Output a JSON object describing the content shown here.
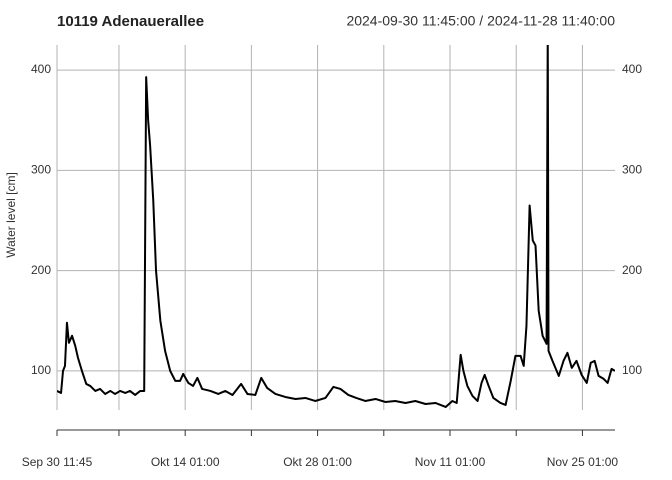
{
  "chart_data": {
    "type": "line",
    "title": "10119 Adenauerallee",
    "subtitle": "2024-09-30 11:45:00 / 2024-11-28 11:40:00",
    "y_label": "Water level [cm]",
    "color": "#000000",
    "grid": true,
    "xlim": [
      "2024-09-30 11:45",
      "2024-11-28 11:40"
    ],
    "xticks": [
      {
        "value": "2024-09-30 11:45",
        "label": "Sep 30 11:45"
      },
      {
        "value": "2024-10-14 01:00",
        "label": "Okt 14 01:00"
      },
      {
        "value": "2024-10-28 01:00",
        "label": "Okt 28 01:00"
      },
      {
        "value": "2024-11-11 01:00",
        "label": "Nov 11 01:00"
      },
      {
        "value": "2024-11-25 01:00",
        "label": "Nov 25 01:00"
      }
    ],
    "xminor_ticks": [
      "2024-10-07 01:00",
      "2024-10-21 01:00",
      "2024-11-04 01:00",
      "2024-11-18 01:00"
    ],
    "ylim": [
      61,
      425
    ],
    "yticks": [
      100,
      200,
      300,
      400
    ],
    "x": [
      "2024-09-30 11:45",
      "2024-09-30 22:00",
      "2024-10-01 03:00",
      "2024-10-01 08:00",
      "2024-10-01 13:00",
      "2024-10-01 18:00",
      "2024-10-02 02:00",
      "2024-10-02 10:00",
      "2024-10-02 17:00",
      "2024-10-03 03:00",
      "2024-10-03 14:00",
      "2024-10-04 00:00",
      "2024-10-04 13:00",
      "2024-10-05 01:00",
      "2024-10-05 14:00",
      "2024-10-06 03:00",
      "2024-10-06 15:00",
      "2024-10-07 04:00",
      "2024-10-07 17:00",
      "2024-10-08 05:00",
      "2024-10-08 18:00",
      "2024-10-09 07:00",
      "2024-10-09 17:00",
      "2024-10-09 22:00",
      "2024-10-10 03:00",
      "2024-10-10 08:00",
      "2024-10-10 16:00",
      "2024-10-10 23:00",
      "2024-10-11 10:00",
      "2024-10-11 22:00",
      "2024-10-12 11:00",
      "2024-10-13 00:00",
      "2024-10-13 12:00",
      "2024-10-13 20:00",
      "2024-10-14 09:00",
      "2024-10-14 21:00",
      "2024-10-15 08:00",
      "2024-10-15 20:00",
      "2024-10-16 17:00",
      "2024-10-17 13:00",
      "2024-10-18 07:00",
      "2024-10-19 01:00",
      "2024-10-19 23:00",
      "2024-10-20 15:00",
      "2024-10-21 11:00",
      "2024-10-22 02:00",
      "2024-10-22 17:00",
      "2024-10-23 14:00",
      "2024-10-24 15:00",
      "2024-10-25 17:00",
      "2024-10-26 18:00",
      "2024-10-27 19:00",
      "2024-10-28 21:00",
      "2024-10-29 17:00",
      "2024-10-30 11:00",
      "2024-10-31 07:00",
      "2024-11-01 03:00",
      "2024-11-02 02:00",
      "2024-11-03 04:00",
      "2024-11-04 05:00",
      "2024-11-05 06:00",
      "2024-11-06 08:00",
      "2024-11-07 09:00",
      "2024-11-08 11:00",
      "2024-11-09 12:00",
      "2024-11-10 14:00",
      "2024-11-11 07:00",
      "2024-11-11 18:00",
      "2024-11-12 04:00",
      "2024-11-12 11:00",
      "2024-11-12 21:00",
      "2024-11-13 10:00",
      "2024-11-13 23:00",
      "2024-11-14 09:00",
      "2024-11-14 17:00",
      "2024-11-15 03:00",
      "2024-11-15 15:00",
      "2024-11-16 09:00",
      "2024-11-16 22:00",
      "2024-11-17 11:00",
      "2024-11-17 23:00",
      "2024-11-18 12:00",
      "2024-11-18 20:00",
      "2024-11-19 03:00",
      "2024-11-19 11:00",
      "2024-11-19 19:00",
      "2024-11-20 02:00",
      "2024-11-20 10:00",
      "2024-11-20 20:00",
      "2024-11-21 06:00",
      "2024-11-21 09:00",
      "2024-11-21 11:00",
      "2024-11-21 21:00",
      "2024-11-22 13:00",
      "2024-11-23 01:00",
      "2024-11-23 11:00",
      "2024-11-23 22:00",
      "2024-11-24 10:00",
      "2024-11-24 23:00",
      "2024-11-25 12:00",
      "2024-11-25 22:00",
      "2024-11-26 08:00",
      "2024-11-26 18:00",
      "2024-11-27 07:00",
      "2024-11-27 17:00",
      "2024-11-28 03:00",
      "2024-11-28 11:40"
    ],
    "values": [
      80,
      78,
      100,
      105,
      148,
      128,
      135,
      125,
      113,
      100,
      87,
      85,
      80,
      82,
      77,
      80,
      77,
      80,
      78,
      80,
      76,
      80,
      80,
      393,
      350,
      325,
      270,
      200,
      150,
      120,
      100,
      90,
      90,
      97,
      88,
      85,
      93,
      82,
      80,
      77,
      80,
      76,
      87,
      77,
      76,
      93,
      83,
      77,
      74,
      72,
      73,
      70,
      73,
      84,
      82,
      76,
      73,
      70,
      72,
      69,
      70,
      68,
      70,
      67,
      68,
      64,
      70,
      68,
      116,
      100,
      85,
      75,
      70,
      88,
      96,
      85,
      73,
      68,
      66,
      90,
      115,
      115,
      105,
      145,
      265,
      230,
      225,
      160,
      135,
      127,
      440,
      120,
      110,
      95,
      110,
      118,
      103,
      110,
      96,
      88,
      108,
      110,
      95,
      92,
      88,
      102,
      100
    ]
  }
}
